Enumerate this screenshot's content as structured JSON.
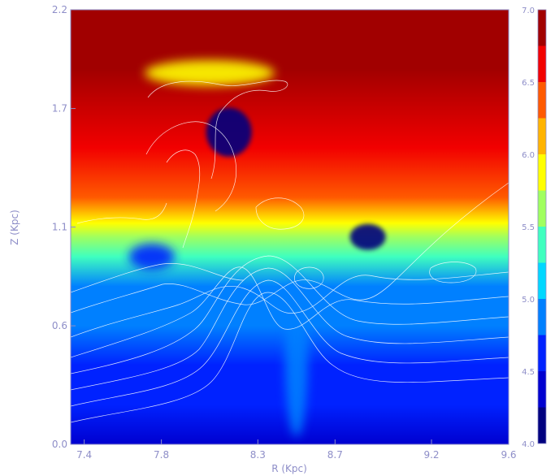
{
  "chart_data": {
    "type": "heatmap",
    "title": "",
    "xlabel": "R (Kpc)",
    "ylabel": "Z (Kpc)",
    "xlim": [
      7.33,
      9.6
    ],
    "ylim": [
      0.0,
      2.2
    ],
    "x_ticks": [
      {
        "value": 7.4,
        "label": "7.4"
      },
      {
        "value": 7.8,
        "label": "7.8"
      },
      {
        "value": 8.3,
        "label": "8.3"
      },
      {
        "value": 8.7,
        "label": "8.7"
      },
      {
        "value": 9.2,
        "label": "9.2"
      },
      {
        "value": 9.6,
        "label": "9.6"
      }
    ],
    "y_ticks": [
      {
        "value": 0.0,
        "label": "0.0"
      },
      {
        "value": 0.6,
        "label": "0.6"
      },
      {
        "value": 1.1,
        "label": "1.1"
      },
      {
        "value": 1.7,
        "label": "1.7"
      },
      {
        "value": 2.2,
        "label": "2.2"
      }
    ],
    "colorbar": {
      "range": [
        4.0,
        7.0
      ],
      "ticks": [
        {
          "value": 4.0,
          "label": "4.0"
        },
        {
          "value": 4.5,
          "label": "4.5"
        },
        {
          "value": 5.0,
          "label": "5.0"
        },
        {
          "value": 5.5,
          "label": "5.5"
        },
        {
          "value": 6.0,
          "label": "6.0"
        },
        {
          "value": 6.5,
          "label": "6.5"
        },
        {
          "value": 7.0,
          "label": "7.0"
        }
      ],
      "bands": [
        {
          "from": 4.0,
          "to": 4.25,
          "color": "#00007f"
        },
        {
          "from": 4.25,
          "to": 4.5,
          "color": "#0000d0"
        },
        {
          "from": 4.5,
          "to": 4.75,
          "color": "#0022ff"
        },
        {
          "from": 4.75,
          "to": 5.0,
          "color": "#0080ff"
        },
        {
          "from": 5.0,
          "to": 5.25,
          "color": "#00d8ff"
        },
        {
          "from": 5.25,
          "to": 5.5,
          "color": "#3fffbf"
        },
        {
          "from": 5.5,
          "to": 5.75,
          "color": "#a0ff5f"
        },
        {
          "from": 5.75,
          "to": 6.0,
          "color": "#ffff00"
        },
        {
          "from": 6.0,
          "to": 6.25,
          "color": "#ffb400"
        },
        {
          "from": 6.25,
          "to": 6.5,
          "color": "#ff5a00"
        },
        {
          "from": 6.5,
          "to": 6.75,
          "color": "#f20000"
        },
        {
          "from": 6.75,
          "to": 7.0,
          "color": "#a10000"
        }
      ]
    },
    "field_profile": [
      {
        "z": 0.0,
        "value": 4.35
      },
      {
        "z": 0.2,
        "value": 4.55
      },
      {
        "z": 0.4,
        "value": 4.7
      },
      {
        "z": 0.6,
        "value": 4.85
      },
      {
        "z": 0.8,
        "value": 5.0
      },
      {
        "z": 0.95,
        "value": 5.3
      },
      {
        "z": 1.05,
        "value": 5.6
      },
      {
        "z": 1.12,
        "value": 6.0
      },
      {
        "z": 1.25,
        "value": 6.35
      },
      {
        "z": 1.5,
        "value": 6.6
      },
      {
        "z": 1.9,
        "value": 6.8
      },
      {
        "z": 2.2,
        "value": 6.85
      }
    ],
    "features": [
      {
        "name": "hot cloud cap",
        "r": 8.05,
        "z": 1.88,
        "value": 5.9
      },
      {
        "name": "cold blob",
        "r": 8.15,
        "z": 1.58,
        "value": 4.2
      },
      {
        "name": "cold knot",
        "r": 8.87,
        "z": 1.05,
        "value": 4.2
      },
      {
        "name": "cold lobe",
        "r": 7.75,
        "z": 0.95,
        "value": 4.6
      },
      {
        "name": "chimney",
        "r": 8.5,
        "z": 0.45,
        "value": 5.0
      }
    ],
    "contour_lines": "white isotherm contours overlaid on the field",
    "grid": false,
    "legend": "colorbar right"
  }
}
